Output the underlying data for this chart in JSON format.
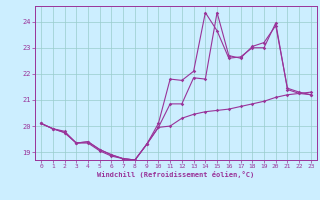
{
  "xlabel": "Windchill (Refroidissement éolien,°C)",
  "background_color": "#cceeff",
  "grid_color": "#99cccc",
  "line_color": "#993399",
  "xlim": [
    -0.5,
    23.5
  ],
  "ylim": [
    18.7,
    24.6
  ],
  "xticks": [
    0,
    1,
    2,
    3,
    4,
    5,
    6,
    7,
    8,
    9,
    10,
    11,
    12,
    13,
    14,
    15,
    16,
    17,
    18,
    19,
    20,
    21,
    22,
    23
  ],
  "yticks": [
    19,
    20,
    21,
    22,
    23,
    24
  ],
  "curve1_x": [
    0,
    1,
    2,
    3,
    4,
    5,
    6,
    7,
    8,
    9,
    10,
    11,
    12,
    13,
    14,
    15,
    16,
    17,
    18,
    19,
    20,
    21,
    22,
    23
  ],
  "curve1_y": [
    20.1,
    19.9,
    19.8,
    19.35,
    19.35,
    19.05,
    18.85,
    18.75,
    18.7,
    19.3,
    19.95,
    20.85,
    20.85,
    21.85,
    21.8,
    24.35,
    22.7,
    22.6,
    23.05,
    23.2,
    23.85,
    21.45,
    21.3,
    21.2
  ],
  "curve2_x": [
    0,
    1,
    2,
    3,
    4,
    5,
    6,
    7,
    8,
    9,
    10,
    11,
    12,
    13,
    14,
    15,
    16,
    17,
    18,
    19,
    20,
    21,
    22,
    23
  ],
  "curve2_y": [
    20.1,
    19.9,
    19.75,
    19.35,
    19.4,
    19.1,
    18.9,
    18.75,
    18.7,
    19.3,
    20.1,
    21.8,
    21.75,
    22.1,
    24.35,
    23.65,
    22.6,
    22.65,
    23.0,
    23.0,
    23.95,
    21.4,
    21.25,
    21.2
  ],
  "curve3_x": [
    0,
    1,
    2,
    3,
    4,
    5,
    6,
    7,
    8,
    9,
    10,
    11,
    12,
    13,
    14,
    15,
    16,
    17,
    18,
    19,
    20,
    21,
    22,
    23
  ],
  "curve3_y": [
    20.1,
    19.9,
    19.75,
    19.35,
    19.4,
    19.1,
    18.9,
    18.75,
    18.7,
    19.3,
    19.95,
    20.0,
    20.3,
    20.45,
    20.55,
    20.6,
    20.65,
    20.75,
    20.85,
    20.95,
    21.1,
    21.2,
    21.25,
    21.3
  ]
}
